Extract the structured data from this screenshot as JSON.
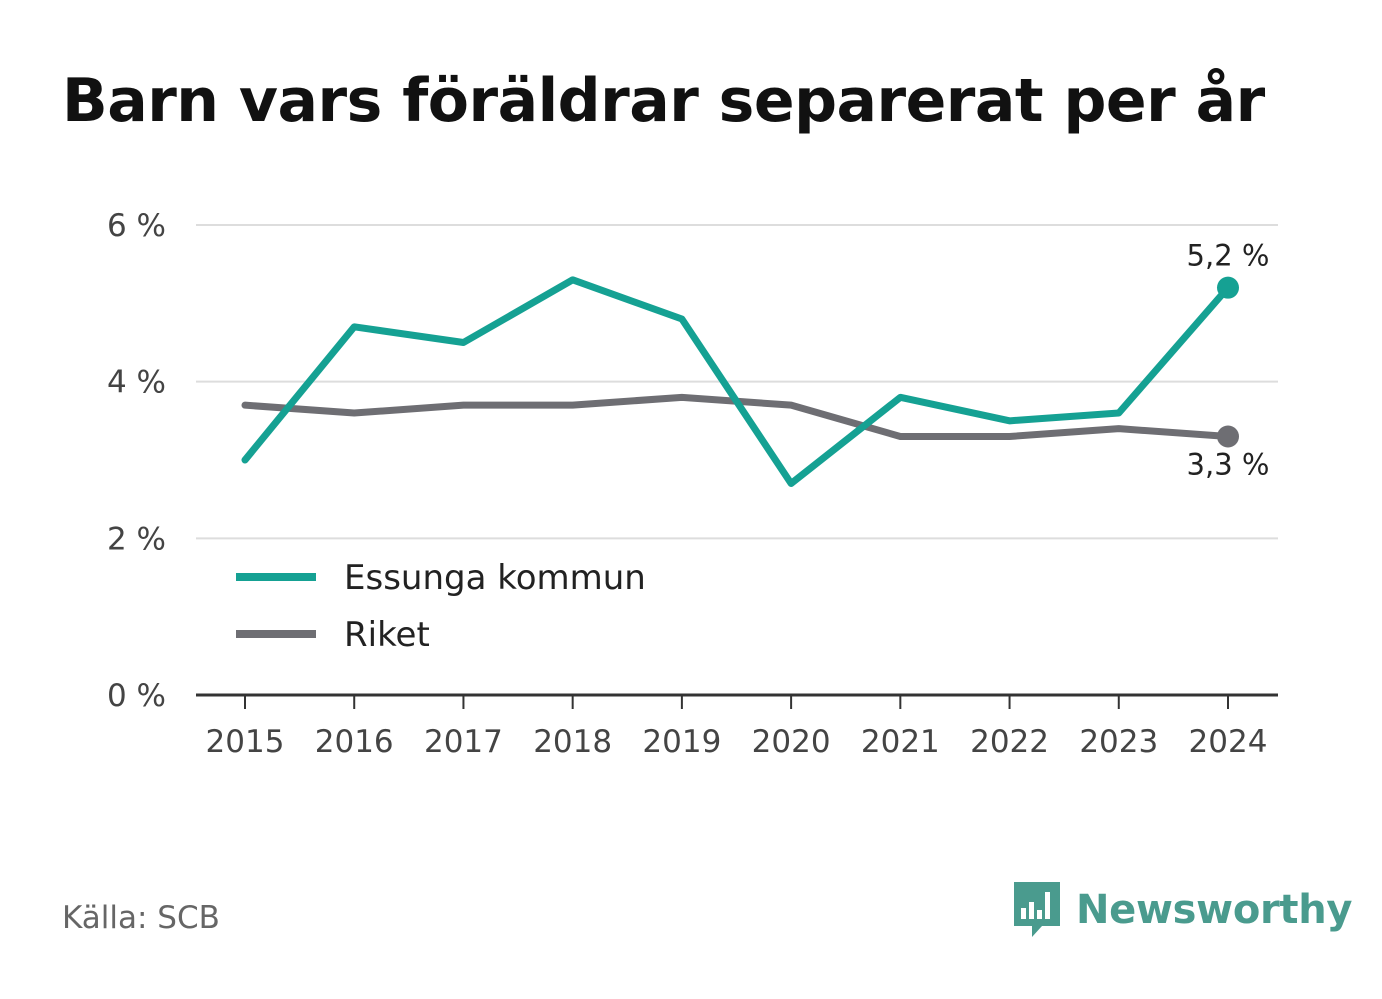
{
  "chart_data": {
    "type": "line",
    "title": "Barn vars föräldrar separerat per år",
    "categories": [
      "2015",
      "2016",
      "2017",
      "2018",
      "2019",
      "2020",
      "2021",
      "2022",
      "2023",
      "2024"
    ],
    "ylim": [
      0,
      6
    ],
    "yticks": [
      0,
      2,
      4,
      6
    ],
    "ytick_labels": [
      "0 %",
      "2 %",
      "4 %",
      "6 %"
    ],
    "grid": true,
    "legend_position": "bottom-left",
    "series": [
      {
        "name": "Essunga kommun",
        "color": "#15a193",
        "values": [
          3.0,
          4.7,
          4.5,
          5.3,
          4.8,
          2.7,
          3.8,
          3.5,
          3.6,
          5.2
        ],
        "end_label": "5,2 %"
      },
      {
        "name": "Riket",
        "color": "#6e6e73",
        "values": [
          3.7,
          3.6,
          3.7,
          3.7,
          3.8,
          3.7,
          3.3,
          3.3,
          3.4,
          3.3
        ],
        "end_label": "3,3 %"
      }
    ]
  },
  "footer": {
    "source": "Källa: SCB",
    "brand": "Newsworthy",
    "brand_color": "#4a9b8e",
    "logo_icon": "newsworthy-bar-chart-icon"
  }
}
